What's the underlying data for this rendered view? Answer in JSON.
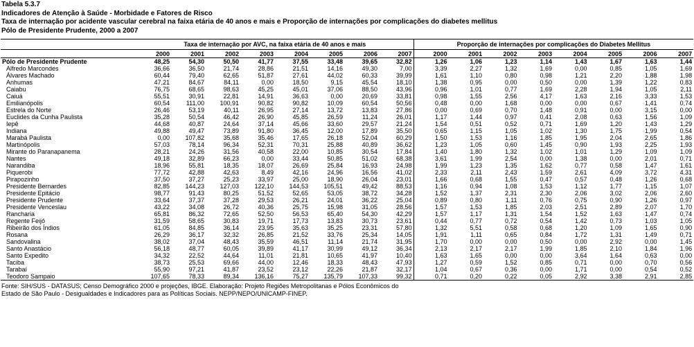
{
  "header": {
    "table_id": "Tabela 5.3.7",
    "title": "Indicadores de Atenção à Saúde - Morbidade e Fatores de Risco",
    "subtitle": "Taxa de internação por acidente vascular cerebral na faixa etária de 40 anos e mais  e  Proporção de internações por complicações do diabetes mellitus",
    "region_period": "Pólo de Presidente Prudente, 2000 a 2007"
  },
  "table": {
    "group_avc": "Taxa de internação por AVC, na faixa etária de 40 anos e mais",
    "group_diab": "Proporção de internações por complicações do Diabetes Mellitus",
    "years": [
      "2000",
      "2001",
      "2002",
      "2003",
      "2004",
      "2005",
      "2006",
      "2007"
    ],
    "total": {
      "name": "Pólo de Presidente Prudente",
      "avc": [
        "48,25",
        "54,30",
        "50,50",
        "41,77",
        "37,55",
        "33,48",
        "39,65",
        "32,82"
      ],
      "diab": [
        "1,26",
        "1,06",
        "1,23",
        "1,14",
        "1,43",
        "1,67",
        "1,63",
        "1,44"
      ]
    },
    "rows": [
      {
        "name": "Alfredo Marcondes",
        "avc": [
          "36,66",
          "36,50",
          "21,74",
          "28,86",
          "21,51",
          "14,16",
          "49,30",
          "7,00"
        ],
        "diab": [
          "3,39",
          "2,27",
          "1,32",
          "1,69",
          "0,00",
          "0,85",
          "1,05",
          "1,69"
        ]
      },
      {
        "name": "Álvares Machado",
        "avc": [
          "60,44",
          "79,40",
          "62,65",
          "51,87",
          "27,61",
          "44,02",
          "60,33",
          "39,99"
        ],
        "diab": [
          "1,61",
          "1,10",
          "0,80",
          "0,98",
          "1,21",
          "2,20",
          "1,88",
          "1,98"
        ]
      },
      {
        "name": "Anhumas",
        "avc": [
          "47,21",
          "84,67",
          "84,11",
          "0,00",
          "18,50",
          "9,15",
          "45,54",
          "18,10"
        ],
        "diab": [
          "1,38",
          "0,95",
          "0,00",
          "0,50",
          "0,00",
          "1,39",
          "1,22",
          "0,83"
        ]
      },
      {
        "name": "Caiabu",
        "avc": [
          "76,75",
          "68,65",
          "98,63",
          "45,25",
          "45,01",
          "37,06",
          "88,50",
          "43,96"
        ],
        "diab": [
          "0,96",
          "1,01",
          "0,77",
          "1,69",
          "2,28",
          "1,94",
          "1,05",
          "2,11"
        ]
      },
      {
        "name": "Caiuá",
        "avc": [
          "55,51",
          "30,91",
          "22,81",
          "14,91",
          "36,63",
          "0,00",
          "20,69",
          "33,81"
        ],
        "diab": [
          "0,98",
          "1,55",
          "2,56",
          "4,17",
          "1,63",
          "2,16",
          "3,33",
          "1,53"
        ]
      },
      {
        "name": "Emilianópolis",
        "avc": [
          "60,54",
          "111,00",
          "100,91",
          "90,82",
          "90,82",
          "10,09",
          "60,54",
          "50,56"
        ],
        "diab": [
          "0,48",
          "0,00",
          "1,68",
          "0,00",
          "0,00",
          "0,67",
          "1,41",
          "0,74"
        ]
      },
      {
        "name": "Estrela do Norte",
        "avc": [
          "26,46",
          "53,19",
          "40,11",
          "26,95",
          "27,14",
          "13,72",
          "13,83",
          "27,86"
        ],
        "diab": [
          "0,00",
          "0,69",
          "0,70",
          "1,48",
          "0,91",
          "0,00",
          "3,15",
          "0,00"
        ]
      },
      {
        "name": "Euclides da Cunha Paulista",
        "avc": [
          "35,28",
          "50,54",
          "46,42",
          "26,90",
          "45,85",
          "26,59",
          "11,24",
          "26,01"
        ],
        "diab": [
          "1,17",
          "1,44",
          "0,97",
          "0,41",
          "2,08",
          "0,63",
          "1,56",
          "1,09"
        ]
      },
      {
        "name": "Iepê",
        "avc": [
          "44,68",
          "40,87",
          "24,64",
          "37,14",
          "45,66",
          "33,60",
          "29,57",
          "21,24"
        ],
        "diab": [
          "1,54",
          "0,51",
          "0,52",
          "0,71",
          "1,69",
          "1,20",
          "1,43",
          "1,29"
        ]
      },
      {
        "name": "Indiana",
        "avc": [
          "49,88",
          "49,47",
          "73,89",
          "91,80",
          "36,45",
          "12,00",
          "17,89",
          "35,50"
        ],
        "diab": [
          "0,65",
          "1,15",
          "1,05",
          "1,02",
          "1,30",
          "1,75",
          "1,99",
          "0,54"
        ]
      },
      {
        "name": "Marabá Paulista",
        "avc": [
          "0,00",
          "107,82",
          "35,68",
          "35,46",
          "17,65",
          "26,18",
          "52,04",
          "60,29"
        ],
        "diab": [
          "1,50",
          "1,53",
          "1,16",
          "1,85",
          "1,95",
          "2,04",
          "2,65",
          "1,86"
        ]
      },
      {
        "name": "Martinópolis",
        "avc": [
          "57,03",
          "78,14",
          "96,34",
          "52,31",
          "70,31",
          "25,88",
          "40,89",
          "36,62"
        ],
        "diab": [
          "1,23",
          "1,05",
          "0,60",
          "1,45",
          "0,90",
          "1,93",
          "2,25",
          "1,93"
        ]
      },
      {
        "name": "Mirante do Paranapanema",
        "avc": [
          "28,21",
          "24,26",
          "31,56",
          "40,58",
          "22,00",
          "10,85",
          "30,54",
          "17,84"
        ],
        "diab": [
          "1,40",
          "1,80",
          "1,32",
          "1,02",
          "1,01",
          "1,29",
          "1,09",
          "1,09"
        ]
      },
      {
        "name": "Nantes",
        "avc": [
          "49,18",
          "32,89",
          "66,23",
          "0,00",
          "33,44",
          "50,85",
          "51,02",
          "68,38"
        ],
        "diab": [
          "3,61",
          "1,99",
          "2,54",
          "0,00",
          "1,38",
          "0,00",
          "2,01",
          "0,71"
        ]
      },
      {
        "name": "Narandiba",
        "avc": [
          "18,96",
          "55,81",
          "18,35",
          "18,07",
          "26,69",
          "25,84",
          "16,93",
          "24,98"
        ],
        "diab": [
          "1,99",
          "1,23",
          "1,35",
          "1,62",
          "0,77",
          "0,58",
          "1,47",
          "1,61"
        ]
      },
      {
        "name": "Piquerobi",
        "avc": [
          "77,72",
          "42,88",
          "42,63",
          "8,49",
          "42,16",
          "24,96",
          "16,56",
          "41,02"
        ],
        "diab": [
          "2,33",
          "2,11",
          "2,43",
          "1,59",
          "2,61",
          "4,09",
          "3,72",
          "4,31"
        ]
      },
      {
        "name": "Pirapozinho",
        "avc": [
          "37,50",
          "37,27",
          "25,23",
          "33,97",
          "25,00",
          "18,90",
          "26,04",
          "23,01"
        ],
        "diab": [
          "1,66",
          "0,68",
          "1,55",
          "0,47",
          "0,57",
          "0,48",
          "1,26",
          "0,68"
        ]
      },
      {
        "name": "Presidente Bernardes",
        "avc": [
          "82,85",
          "144,23",
          "127,03",
          "122,10",
          "144,53",
          "105,51",
          "49,42",
          "88,53"
        ],
        "diab": [
          "1,16",
          "0,94",
          "1,08",
          "1,53",
          "1,12",
          "1,77",
          "1,15",
          "1,07"
        ]
      },
      {
        "name": "Presidente Epitácio",
        "avc": [
          "98,77",
          "91,43",
          "80,25",
          "51,52",
          "52,65",
          "53,05",
          "38,72",
          "34,28"
        ],
        "diab": [
          "1,52",
          "1,37",
          "2,31",
          "2,30",
          "2,06",
          "3,02",
          "2,06",
          "2,60"
        ]
      },
      {
        "name": "Presidente Prudente",
        "avc": [
          "33,64",
          "37,37",
          "37,28",
          "29,53",
          "26,21",
          "24,01",
          "36,22",
          "25,04"
        ],
        "diab": [
          "0,89",
          "0,80",
          "1,11",
          "0,76",
          "0,75",
          "0,90",
          "1,26",
          "0,97"
        ]
      },
      {
        "name": "Presidente Venceslau",
        "avc": [
          "43,22",
          "34,08",
          "26,72",
          "40,36",
          "25,75",
          "15,98",
          "31,05",
          "28,56"
        ],
        "diab": [
          "1,57",
          "1,53",
          "1,85",
          "2,03",
          "2,51",
          "2,89",
          "2,07",
          "1,70"
        ]
      },
      {
        "name": "Rancharia",
        "avc": [
          "65,81",
          "86,32",
          "72,65",
          "52,50",
          "56,53",
          "65,40",
          "54,30",
          "42,29"
        ],
        "diab": [
          "1,57",
          "1,17",
          "1,31",
          "1,54",
          "1,52",
          "1,63",
          "1,47",
          "0,74"
        ]
      },
      {
        "name": "Regente Feijó",
        "avc": [
          "31,59",
          "58,65",
          "30,83",
          "19,71",
          "17,73",
          "13,83",
          "30,73",
          "23,61"
        ],
        "diab": [
          "0,44",
          "0,77",
          "0,72",
          "0,54",
          "1,42",
          "0,73",
          "1,03",
          "1,05"
        ]
      },
      {
        "name": "Ribeirão dos Índios",
        "avc": [
          "61,05",
          "84,85",
          "36,14",
          "23,95",
          "35,63",
          "35,25",
          "23,31",
          "57,80"
        ],
        "diab": [
          "1,32",
          "5,51",
          "0,58",
          "0,68",
          "1,20",
          "1,09",
          "1,65",
          "0,90"
        ]
      },
      {
        "name": "Rosana",
        "avc": [
          "26,29",
          "36,17",
          "32,32",
          "26,85",
          "21,52",
          "33,76",
          "25,34",
          "14,05"
        ],
        "diab": [
          "1,91",
          "1,11",
          "0,65",
          "0,84",
          "1,72",
          "1,31",
          "1,49",
          "0,71"
        ]
      },
      {
        "name": "Sandovalina",
        "avc": [
          "38,02",
          "37,04",
          "48,43",
          "35,59",
          "46,51",
          "11,14",
          "21,74",
          "31,95"
        ],
        "diab": [
          "1,70",
          "0,00",
          "0,00",
          "0,50",
          "0,00",
          "2,92",
          "0,00",
          "1,45"
        ]
      },
      {
        "name": "Santo Anastácio",
        "avc": [
          "56,18",
          "48,77",
          "60,05",
          "39,89",
          "41,17",
          "30,99",
          "49,12",
          "36,34"
        ],
        "diab": [
          "2,13",
          "2,17",
          "2,17",
          "1,99",
          "1,85",
          "2,10",
          "1,84",
          "1,96"
        ]
      },
      {
        "name": "Santo Expedito",
        "avc": [
          "34,32",
          "22,52",
          "44,64",
          "11,01",
          "21,81",
          "10,65",
          "41,97",
          "10,40"
        ],
        "diab": [
          "1,63",
          "1,65",
          "0,00",
          "0,00",
          "3,64",
          "1,64",
          "0,63",
          "0,00"
        ]
      },
      {
        "name": "Taciba",
        "avc": [
          "38,73",
          "25,53",
          "69,66",
          "44,00",
          "12,46",
          "18,33",
          "48,43",
          "47,93"
        ],
        "diab": [
          "1,27",
          "0,59",
          "1,52",
          "0,85",
          "0,71",
          "0,00",
          "0,70",
          "0,56"
        ]
      },
      {
        "name": "Tarabaí",
        "avc": [
          "55,90",
          "97,21",
          "41,87",
          "23,52",
          "23,12",
          "22,26",
          "21,87",
          "32,17"
        ],
        "diab": [
          "1,04",
          "0,67",
          "0,36",
          "0,00",
          "1,71",
          "0,00",
          "0,54",
          "0,52"
        ]
      },
      {
        "name": "Teodoro Sampaio",
        "avc": [
          "107,65",
          "78,33",
          "89,34",
          "136,16",
          "75,27",
          "135,79",
          "107,33",
          "99,32"
        ],
        "diab": [
          "0,71",
          "0,20",
          "0,22",
          "0,05",
          "2,92",
          "3,38",
          "2,91",
          "2,85"
        ]
      }
    ]
  },
  "footer": {
    "line1": "Fonte: SIH/SUS - DATASUS; Censo Demográfico 2000 e projeções, IBGE.  Elaboração: Projeto Regiões Metropolitanas e Pólos Econômicos do",
    "line2": "Estado de São Paulo - Desigualdades e Indicadores para as Políticas Sociais. NEPP/NEPO/UNICAMP-FINEP."
  }
}
